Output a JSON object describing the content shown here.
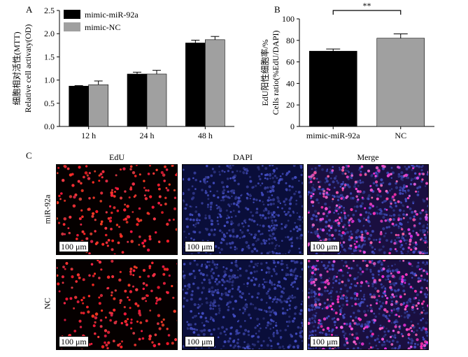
{
  "panels": {
    "a": "A",
    "b": "B",
    "c": "C"
  },
  "chart_data": [
    {
      "type": "bar",
      "panel": "A",
      "categories": [
        "12 h",
        "24 h",
        "48 h"
      ],
      "series": [
        {
          "name": "mimic-miR-92a",
          "color": "#000000",
          "values": [
            0.87,
            1.13,
            1.8
          ],
          "errors": [
            0.01,
            0.04,
            0.06
          ]
        },
        {
          "name": "mimic-NC",
          "color": "#a0a0a0",
          "values": [
            0.9,
            1.13,
            1.87
          ],
          "errors": [
            0.08,
            0.08,
            0.07
          ]
        }
      ],
      "ylabel_cn": "细胞相对活性(MTT)",
      "ylabel_en": "Relative cell activaty(OD)",
      "ylim": [
        0.0,
        2.5
      ],
      "yticks": [
        "0.0",
        "0.5",
        "1.0",
        "1.5",
        "2.0",
        "2.5"
      ],
      "legend": "top-left"
    },
    {
      "type": "bar",
      "panel": "B",
      "categories": [
        "mimic-miR-92a",
        "NC"
      ],
      "values": [
        70,
        82
      ],
      "errors": [
        2,
        4
      ],
      "colors": [
        "#000000",
        "#a0a0a0"
      ],
      "ylabel_cn": "EdU阳性细胞率/%",
      "ylabel_en": "Cells ratio(%EdU/DAPI)",
      "ylim": [
        0,
        100
      ],
      "yticks": [
        "0",
        "20",
        "40",
        "60",
        "80",
        "100"
      ],
      "significance": "**"
    }
  ],
  "micrographs": {
    "columns": [
      "EdU",
      "DAPI",
      "Merge"
    ],
    "rows": [
      "miR-92a",
      "NC"
    ],
    "scale_bar": "100 μm"
  }
}
